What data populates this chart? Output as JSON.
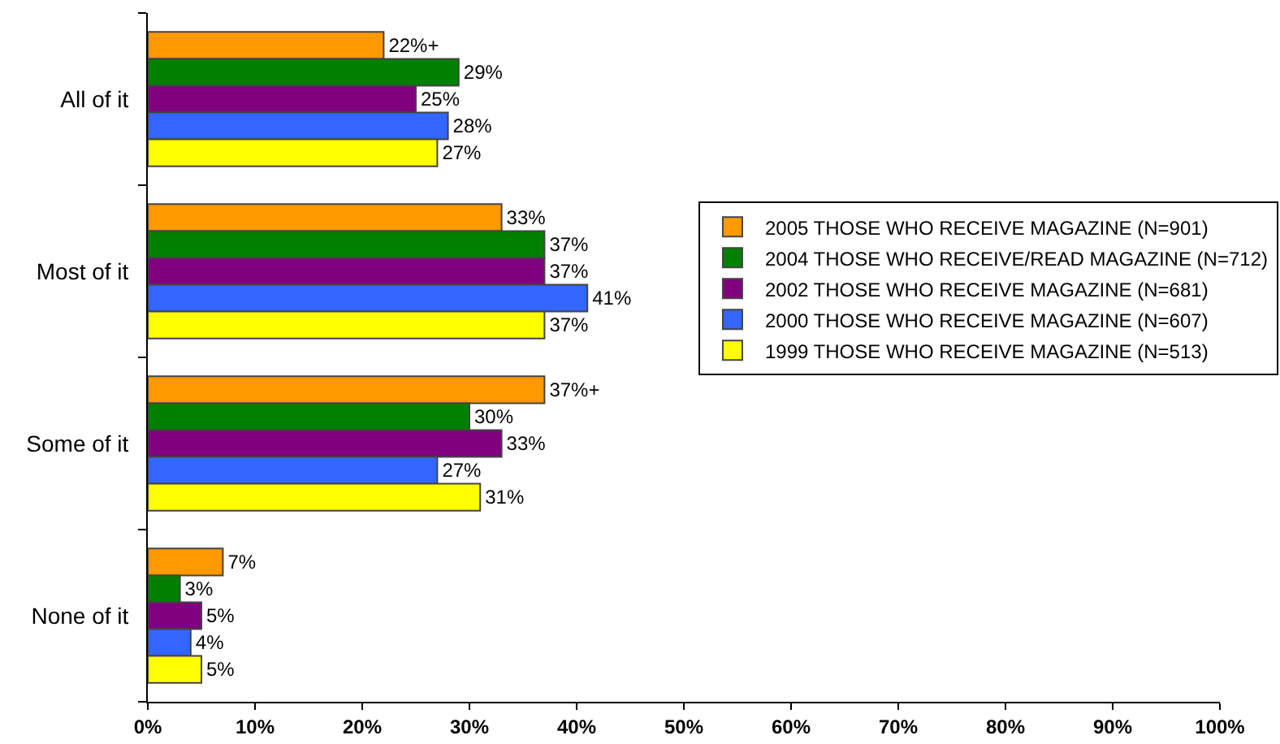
{
  "chart_data": {
    "type": "bar",
    "orientation": "horizontal",
    "categories": [
      "All of it",
      "Most of it",
      "Some of it",
      "None of it"
    ],
    "series": [
      {
        "name": "2005 THOSE WHO RECEIVE MAGAZINE (N=901)",
        "color": "#ff9900",
        "values": [
          22,
          33,
          37,
          7
        ],
        "value_labels": [
          "22%+",
          "33%",
          "37%+",
          "7%"
        ]
      },
      {
        "name": "2004 THOSE WHO RECEIVE/READ MAGAZINE (N=712)",
        "color": "#008000",
        "values": [
          29,
          37,
          30,
          3
        ],
        "value_labels": [
          "29%",
          "37%",
          "30%",
          "3%"
        ]
      },
      {
        "name": "2002 THOSE WHO RECEIVE MAGAZINE (N=681)",
        "color": "#800080",
        "values": [
          25,
          37,
          33,
          5
        ],
        "value_labels": [
          "25%",
          "37%",
          "33%",
          "5%"
        ]
      },
      {
        "name": "2000 THOSE WHO RECEIVE MAGAZINE (N=607)",
        "color": "#3366ff",
        "values": [
          28,
          41,
          27,
          4
        ],
        "value_labels": [
          "28%",
          "41%",
          "27%",
          "4%"
        ]
      },
      {
        "name": "1999 THOSE WHO RECEIVE MAGAZINE (N=513)",
        "color": "#ffff00",
        "values": [
          27,
          37,
          31,
          5
        ],
        "value_labels": [
          "27%",
          "37%",
          "31%",
          "5%"
        ]
      }
    ],
    "xlim": [
      0,
      100
    ],
    "xticks": [
      {
        "value": 0,
        "label": "0%"
      },
      {
        "value": 10,
        "label": "10%"
      },
      {
        "value": 20,
        "label": "20%"
      },
      {
        "value": 30,
        "label": "30%"
      },
      {
        "value": 40,
        "label": "40%"
      },
      {
        "value": 50,
        "label": "50%"
      },
      {
        "value": 60,
        "label": "60%"
      },
      {
        "value": 70,
        "label": "70%"
      },
      {
        "value": 80,
        "label": "80%"
      },
      {
        "value": 90,
        "label": "90%"
      },
      {
        "value": 100,
        "label": "100%"
      }
    ],
    "legend": "right"
  }
}
